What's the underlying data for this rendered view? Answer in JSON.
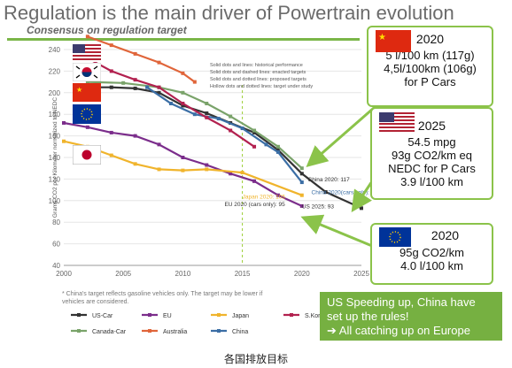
{
  "title": "Regulation is the main driver of Powertrain evolution",
  "subtitle": "Consensus on regulation target",
  "caption": "各国排放目标",
  "callouts": {
    "china": {
      "lines": [
        "2020",
        "5 l/100 km (117g)",
        "4,5l/100km (106g)",
        "for P Cars"
      ]
    },
    "us": {
      "lines": [
        "2025",
        "54.5 mpg",
        "93g CO2/km eq",
        "NEDC for P Cars",
        "3.9 l/100 km"
      ]
    },
    "eu": {
      "lines": [
        "2020",
        "95g CO2/km",
        "4.0 l/100 km"
      ]
    }
  },
  "banner": {
    "lines": [
      "US Speeding up, China have",
      "set up the rules!",
      "➔ All catching up on Europe"
    ]
  },
  "footnote": "* China's target reflects gasoline vehicles only. The target may be lower if",
  "footnote2": "vehicles are considered.",
  "chart_legend_notes": [
    "Solid dots and lines: historical performance",
    "Solid dots and dashed lines: enacted targets",
    "Solid dots and dotted lines: proposed targets",
    "Hollow dots and dotted lines: target under study"
  ],
  "chart_data": {
    "type": "line",
    "title": "",
    "xlabel": "",
    "ylabel": "Grams CO2 per Kilometer normalized to NEDC",
    "xlim": [
      2000,
      2025
    ],
    "ylim": [
      40,
      240
    ],
    "xticks": [
      2000,
      2005,
      2010,
      2015,
      2020,
      2025
    ],
    "yticks": [
      40,
      60,
      80,
      100,
      120,
      140,
      160,
      180,
      200,
      220,
      240
    ],
    "series": [
      {
        "name": "US-Car",
        "color": "#333333",
        "x": [
          2002,
          2004,
          2006,
          2008,
          2010,
          2012,
          2014,
          2016,
          2018,
          2020,
          2022,
          2025
        ],
        "y": [
          205,
          205,
          204,
          200,
          188,
          181,
          172,
          163,
          147,
          125,
          108,
          93
        ]
      },
      {
        "name": "Canada-Car",
        "color": "#7aa36a",
        "x": [
          2002,
          2005,
          2008,
          2010,
          2012,
          2014,
          2016,
          2018,
          2020
        ],
        "y": [
          210,
          209,
          205,
          200,
          190,
          178,
          165,
          150,
          130
        ]
      },
      {
        "name": "EU",
        "color": "#7b2d8b",
        "x": [
          2000,
          2002,
          2004,
          2006,
          2008,
          2010,
          2012,
          2014,
          2016,
          2018,
          2020
        ],
        "y": [
          172,
          168,
          163,
          160,
          152,
          140,
          133,
          125,
          118,
          105,
          95
        ]
      },
      {
        "name": "Australia",
        "color": "#e0653a",
        "x": [
          2002,
          2004,
          2006,
          2008,
          2010,
          2011
        ],
        "y": [
          252,
          244,
          236,
          228,
          218,
          210
        ]
      },
      {
        "name": "Japan",
        "color": "#f0b42c",
        "x": [
          2000,
          2002,
          2004,
          2006,
          2008,
          2010,
          2012,
          2015,
          2020
        ],
        "y": [
          155,
          150,
          142,
          134,
          129,
          128,
          129,
          126,
          105
        ]
      },
      {
        "name": "China",
        "color": "#3b6ea5",
        "x": [
          2007,
          2009,
          2011,
          2013,
          2015,
          2017,
          2018,
          2020
        ],
        "y": [
          205,
          190,
          180,
          176,
          167,
          152,
          145,
          117
        ]
      },
      {
        "name": "S.Korea",
        "color": "#b2214f",
        "x": [
          2002,
          2004,
          2006,
          2008,
          2010,
          2012,
          2014,
          2016
        ],
        "y": [
          232,
          220,
          212,
          205,
          190,
          177,
          165,
          150
        ]
      }
    ],
    "annotations": [
      "China 2020: 117",
      "China 2020(cars only): 106",
      "Japan 2020: 105",
      "EU 2020 (cars only): 95",
      "US 2025: 93"
    ]
  },
  "legend": [
    "US-Car",
    "EU",
    "Japan",
    "S.Korea",
    "Canada-Car",
    "Australia",
    "China"
  ]
}
